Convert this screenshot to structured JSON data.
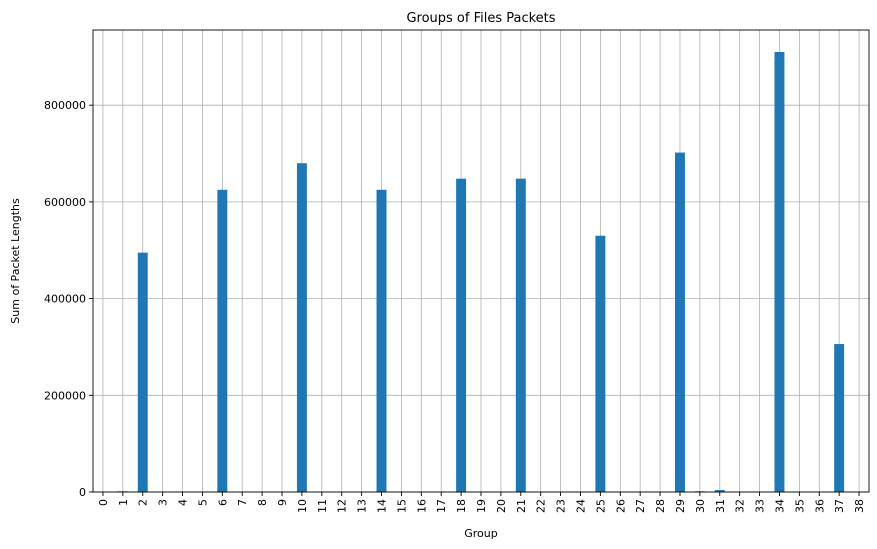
{
  "chart_data": {
    "type": "bar",
    "title": "Groups of Files Packets",
    "xlabel": "Group",
    "ylabel": "Sum of Packet Lengths",
    "categories": [
      "0",
      "1",
      "2",
      "3",
      "4",
      "5",
      "6",
      "7",
      "8",
      "9",
      "10",
      "11",
      "12",
      "13",
      "14",
      "15",
      "16",
      "17",
      "18",
      "19",
      "20",
      "21",
      "22",
      "23",
      "24",
      "25",
      "26",
      "27",
      "28",
      "29",
      "30",
      "31",
      "32",
      "33",
      "34",
      "35",
      "36",
      "37",
      "38"
    ],
    "values": [
      0,
      1500,
      495000,
      0,
      0,
      0,
      625000,
      0,
      0,
      0,
      680000,
      0,
      0,
      0,
      625000,
      0,
      0,
      0,
      648000,
      0,
      0,
      648000,
      0,
      0,
      0,
      530000,
      0,
      0,
      0,
      702000,
      1500,
      4000,
      0,
      0,
      910000,
      0,
      0,
      306000,
      0
    ],
    "yticks": [
      0,
      200000,
      400000,
      600000,
      800000
    ],
    "ylim": [
      0,
      955500
    ],
    "bar_color": "#1f77b4",
    "grid": true
  }
}
